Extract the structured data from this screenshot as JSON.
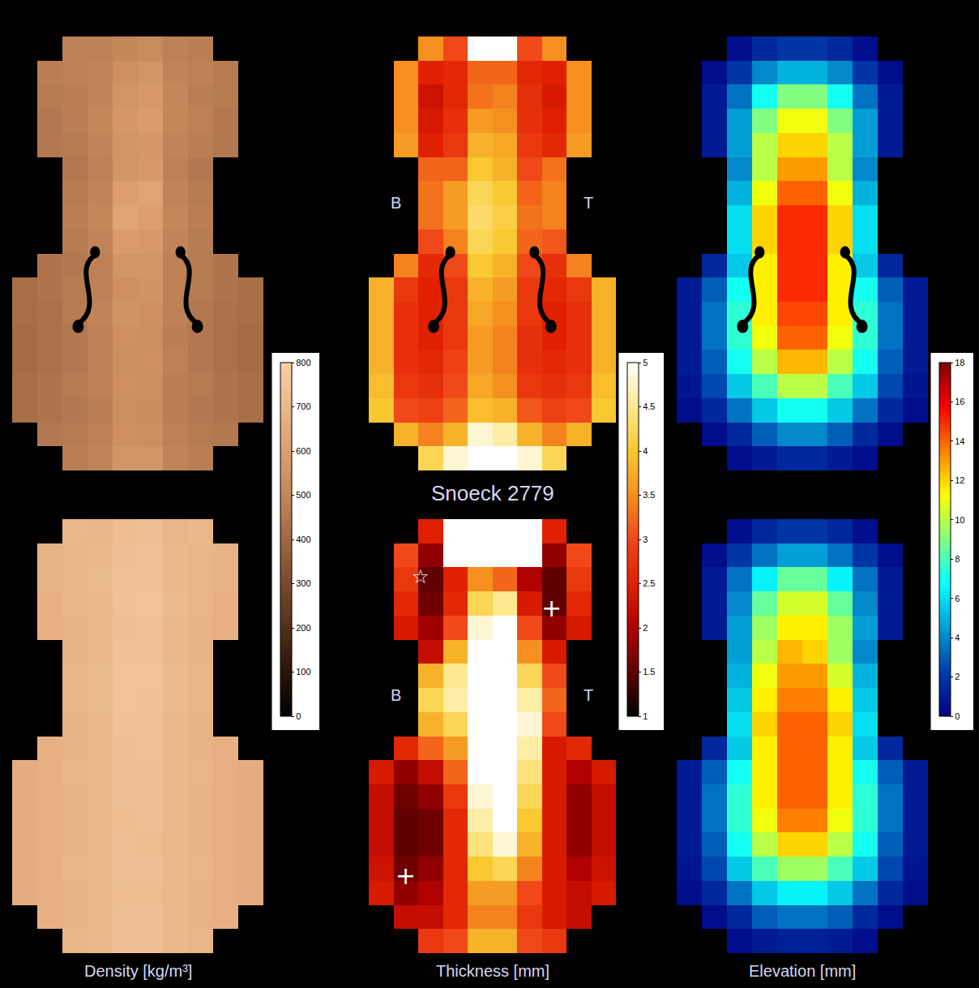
{
  "chart_data": [
    {
      "type": "heatmap",
      "tick_labels": false,
      "color_bar": {
        "range": [
          0,
          800
        ],
        "ticks": [
          0,
          100,
          200,
          300,
          400,
          500,
          600,
          700,
          800
        ]
      },
      "annotations": [],
      "z": [
        [
          null,
          null,
          480,
          480,
          500,
          520,
          480,
          470,
          null,
          null
        ],
        [
          null,
          470,
          480,
          490,
          540,
          560,
          490,
          480,
          460,
          null
        ],
        [
          null,
          460,
          470,
          490,
          560,
          580,
          500,
          470,
          460,
          null
        ],
        [
          null,
          450,
          470,
          500,
          570,
          590,
          500,
          480,
          450,
          null
        ],
        [
          null,
          450,
          460,
          490,
          560,
          570,
          490,
          470,
          450,
          null
        ],
        [
          null,
          null,
          450,
          480,
          560,
          580,
          480,
          450,
          null,
          null
        ],
        [
          null,
          null,
          460,
          490,
          600,
          620,
          490,
          460,
          null,
          null
        ],
        [
          null,
          null,
          470,
          500,
          620,
          600,
          500,
          470,
          null,
          null
        ],
        [
          null,
          null,
          460,
          490,
          590,
          580,
          490,
          460,
          null,
          null
        ],
        [
          null,
          440,
          450,
          480,
          560,
          560,
          480,
          460,
          440,
          null
        ],
        [
          420,
          440,
          460,
          480,
          540,
          550,
          480,
          460,
          440,
          420
        ],
        [
          420,
          430,
          460,
          490,
          550,
          540,
          480,
          450,
          430,
          420
        ],
        [
          410,
          430,
          450,
          480,
          540,
          530,
          470,
          450,
          430,
          410
        ],
        [
          410,
          430,
          450,
          480,
          530,
          540,
          480,
          450,
          430,
          410
        ],
        [
          420,
          440,
          460,
          480,
          540,
          530,
          470,
          460,
          440,
          420
        ],
        [
          420,
          440,
          450,
          470,
          530,
          520,
          470,
          450,
          440,
          420
        ],
        [
          null,
          450,
          460,
          480,
          540,
          530,
          480,
          460,
          450,
          null
        ],
        [
          null,
          null,
          470,
          490,
          560,
          560,
          490,
          470,
          null,
          null
        ]
      ]
    },
    {
      "type": "heatmap",
      "tick_labels": false,
      "color_bar": {
        "range": [
          1,
          5
        ],
        "ticks": [
          1,
          1.5,
          2,
          2.5,
          3,
          3.5,
          4,
          4.5,
          5
        ]
      },
      "xlabel": "Snoeck 2779",
      "annotations": [
        "B",
        "T"
      ],
      "z": [
        [
          null,
          null,
          3.5,
          3,
          5,
          5,
          3,
          3.5,
          null,
          null
        ],
        [
          null,
          3.5,
          2.5,
          2.6,
          3.2,
          3.2,
          2.6,
          2.5,
          3.5,
          null
        ],
        [
          null,
          3.5,
          2.3,
          2.6,
          3.3,
          3.4,
          2.7,
          2.4,
          3.5,
          null
        ],
        [
          null,
          3.5,
          2.4,
          2.7,
          3.6,
          3.5,
          2.7,
          2.5,
          3.5,
          null
        ],
        [
          null,
          3.6,
          2.5,
          2.8,
          3.8,
          3.7,
          2.8,
          2.6,
          3.6,
          null
        ],
        [
          null,
          null,
          3.2,
          3.2,
          4.0,
          3.8,
          3.0,
          3.3,
          null,
          null
        ],
        [
          null,
          null,
          3.3,
          3.6,
          4.2,
          4.0,
          3.2,
          3.4,
          null,
          null
        ],
        [
          null,
          null,
          3.3,
          3.6,
          4.3,
          4.1,
          3.3,
          3.4,
          null,
          null
        ],
        [
          null,
          null,
          3.0,
          3.4,
          4.2,
          4.0,
          3.2,
          3.1,
          null,
          null
        ],
        [
          null,
          3.4,
          2.6,
          3.0,
          4.0,
          3.8,
          3.0,
          2.7,
          3.4,
          null
        ],
        [
          3.8,
          2.8,
          2.5,
          2.8,
          3.8,
          3.6,
          2.8,
          2.6,
          2.8,
          3.8
        ],
        [
          3.8,
          2.7,
          2.5,
          2.8,
          3.7,
          3.5,
          2.8,
          2.5,
          2.7,
          3.8
        ],
        [
          3.8,
          2.7,
          2.5,
          2.8,
          3.6,
          3.4,
          2.7,
          2.5,
          2.7,
          3.8
        ],
        [
          3.8,
          2.7,
          2.6,
          2.9,
          3.6,
          3.4,
          2.7,
          2.6,
          2.7,
          3.8
        ],
        [
          3.9,
          2.8,
          2.7,
          3.0,
          3.7,
          3.5,
          2.8,
          2.7,
          2.8,
          3.9
        ],
        [
          4.0,
          3.0,
          2.9,
          3.2,
          3.9,
          3.8,
          3.1,
          2.9,
          3.0,
          4.0
        ],
        [
          null,
          3.8,
          3.4,
          3.8,
          4.8,
          4.6,
          3.8,
          3.4,
          3.8,
          null
        ],
        [
          null,
          null,
          4.2,
          4.8,
          5,
          5,
          4.8,
          4.2,
          null,
          null
        ]
      ]
    },
    {
      "type": "heatmap",
      "tick_labels": false,
      "color_bar": {
        "range": [
          0,
          18
        ],
        "ticks": [
          0,
          2,
          4,
          6,
          8,
          10,
          12,
          14,
          16,
          18
        ]
      },
      "annotations": [],
      "z": [
        [
          null,
          null,
          0.5,
          1.5,
          2,
          2,
          1.5,
          0.5,
          null,
          null
        ],
        [
          null,
          0.5,
          2,
          4,
          5,
          5,
          4,
          2,
          0.5,
          null
        ],
        [
          null,
          1,
          3.5,
          7,
          9,
          9,
          7,
          3.5,
          1,
          null
        ],
        [
          null,
          1,
          4.5,
          9,
          11,
          11,
          9,
          4.5,
          1,
          null
        ],
        [
          null,
          1,
          4.5,
          10,
          12,
          12,
          10,
          4.5,
          1,
          null
        ],
        [
          null,
          null,
          4,
          10,
          13,
          13,
          10,
          4,
          null,
          null
        ],
        [
          null,
          null,
          5,
          11,
          14,
          14,
          11,
          5,
          null,
          null
        ],
        [
          null,
          null,
          6,
          12,
          15,
          15,
          12,
          6,
          null,
          null
        ],
        [
          null,
          null,
          6,
          12,
          15,
          15,
          12,
          6,
          null,
          null
        ],
        [
          null,
          1.5,
          5.5,
          11.5,
          15,
          15,
          11.5,
          5.5,
          1.5,
          null
        ],
        [
          1,
          3,
          7,
          11.5,
          15,
          15,
          11.5,
          7,
          3,
          1
        ],
        [
          1,
          3.5,
          7.5,
          11.5,
          14.5,
          14.5,
          11.5,
          7.5,
          3.5,
          1
        ],
        [
          1,
          3.5,
          7.5,
          11,
          14,
          14,
          11,
          7.5,
          3.5,
          1
        ],
        [
          1,
          3,
          7,
          10,
          12.5,
          12.5,
          10,
          7,
          3,
          1
        ],
        [
          0.8,
          2.5,
          5.5,
          8,
          10,
          10,
          8,
          5.5,
          2.5,
          0.8
        ],
        [
          0.5,
          1.5,
          3.5,
          5.5,
          7,
          7,
          5.5,
          3.5,
          1.5,
          0.5
        ],
        [
          null,
          0.5,
          1.5,
          3,
          4,
          4,
          3,
          1.5,
          0.5,
          null
        ],
        [
          null,
          null,
          0.5,
          1,
          1.5,
          1.5,
          1,
          0.5,
          null,
          null
        ]
      ]
    },
    {
      "type": "heatmap",
      "tick_labels": false,
      "xlabel": "Density [kg/m³]",
      "annotations": [],
      "z": [
        [
          null,
          null,
          700,
          690,
          720,
          730,
          690,
          700,
          null,
          null
        ],
        [
          null,
          680,
          690,
          700,
          730,
          740,
          700,
          690,
          680,
          null
        ],
        [
          null,
          680,
          690,
          710,
          740,
          740,
          700,
          690,
          680,
          null
        ],
        [
          null,
          670,
          690,
          700,
          740,
          750,
          710,
          690,
          670,
          null
        ],
        [
          null,
          670,
          680,
          700,
          730,
          740,
          700,
          680,
          670,
          null
        ],
        [
          null,
          null,
          680,
          700,
          740,
          740,
          700,
          680,
          null,
          null
        ],
        [
          null,
          null,
          690,
          710,
          750,
          750,
          710,
          690,
          null,
          null
        ],
        [
          null,
          null,
          690,
          710,
          750,
          740,
          710,
          690,
          null,
          null
        ],
        [
          null,
          null,
          680,
          700,
          740,
          740,
          700,
          680,
          null,
          null
        ],
        [
          null,
          670,
          680,
          700,
          730,
          740,
          700,
          680,
          670,
          null
        ],
        [
          660,
          670,
          690,
          700,
          730,
          730,
          700,
          690,
          670,
          660
        ],
        [
          660,
          670,
          680,
          700,
          730,
          730,
          700,
          680,
          670,
          660
        ],
        [
          660,
          670,
          680,
          700,
          720,
          730,
          700,
          680,
          670,
          660
        ],
        [
          660,
          670,
          680,
          700,
          730,
          720,
          700,
          680,
          670,
          660
        ],
        [
          660,
          670,
          690,
          700,
          730,
          730,
          700,
          690,
          670,
          660
        ],
        [
          660,
          670,
          680,
          700,
          720,
          720,
          700,
          680,
          670,
          660
        ],
        [
          null,
          670,
          680,
          700,
          730,
          730,
          700,
          680,
          670,
          null
        ],
        [
          null,
          null,
          690,
          700,
          730,
          730,
          700,
          690,
          null,
          null
        ]
      ]
    },
    {
      "type": "heatmap",
      "tick_labels": false,
      "xlabel": "Thickness [mm]",
      "annotations": [
        "B",
        "T",
        "☆",
        "+",
        "+"
      ],
      "z": [
        [
          null,
          null,
          2.5,
          5,
          5,
          5,
          5,
          2.5,
          null,
          null
        ],
        [
          null,
          3.0,
          1.8,
          5,
          5,
          5,
          5,
          1.8,
          3.0,
          null
        ],
        [
          null,
          2.8,
          1.5,
          2.5,
          3.5,
          3.2,
          2.0,
          1.5,
          2.8,
          null
        ],
        [
          null,
          2.6,
          1.6,
          2.6,
          4.2,
          4.5,
          2.4,
          1.5,
          2.6,
          null
        ],
        [
          null,
          2.4,
          1.9,
          3.0,
          4.8,
          5,
          3.0,
          1.8,
          2.4,
          null
        ],
        [
          null,
          null,
          2.2,
          3.8,
          5,
          5,
          3.5,
          2.4,
          null,
          null
        ],
        [
          null,
          null,
          3.8,
          4.5,
          5,
          5,
          4.2,
          3.0,
          null,
          null
        ],
        [
          null,
          null,
          4.2,
          4.6,
          5,
          5,
          4.6,
          3.2,
          null,
          null
        ],
        [
          null,
          null,
          3.8,
          4.2,
          5,
          5,
          4.8,
          3.0,
          null,
          null
        ],
        [
          null,
          2.6,
          3.2,
          3.6,
          5,
          5,
          4.6,
          2.4,
          2.6,
          null
        ],
        [
          2.4,
          1.8,
          2.2,
          3.2,
          5,
          5,
          4.4,
          2.4,
          2.0,
          2.4
        ],
        [
          2.2,
          1.6,
          1.8,
          2.8,
          4.8,
          5,
          4.2,
          2.4,
          1.8,
          2.2
        ],
        [
          2.2,
          1.5,
          1.6,
          2.6,
          4.6,
          5,
          4.0,
          2.4,
          1.8,
          2.2
        ],
        [
          2.2,
          1.5,
          1.6,
          2.6,
          4.4,
          4.8,
          3.8,
          2.4,
          1.8,
          2.2
        ],
        [
          2.3,
          1.6,
          1.8,
          2.6,
          4.0,
          4.2,
          3.4,
          2.4,
          2.0,
          2.3
        ],
        [
          2.4,
          1.8,
          2.0,
          2.6,
          3.6,
          3.6,
          3.0,
          2.4,
          2.2,
          2.4
        ],
        [
          null,
          2.2,
          2.2,
          2.6,
          3.4,
          3.4,
          2.8,
          2.4,
          2.2,
          null
        ],
        [
          null,
          null,
          2.8,
          3.0,
          3.8,
          3.8,
          3.0,
          2.8,
          null,
          null
        ]
      ]
    },
    {
      "type": "heatmap",
      "tick_labels": false,
      "xlabel": "Elevation [mm]",
      "annotations": [],
      "z": [
        [
          null,
          null,
          0.5,
          1.5,
          2,
          2,
          1.5,
          0.5,
          null,
          null
        ],
        [
          null,
          0.5,
          2,
          3.5,
          4.5,
          4.5,
          3.5,
          2,
          0.5,
          null
        ],
        [
          null,
          1,
          3.5,
          6.5,
          8.5,
          8.5,
          6.5,
          3.5,
          1,
          null
        ],
        [
          null,
          1,
          4,
          8.5,
          10.5,
          10.5,
          8.5,
          4,
          1,
          null
        ],
        [
          null,
          1,
          4.5,
          9.5,
          11.5,
          11.5,
          9.5,
          4.5,
          1,
          null
        ],
        [
          null,
          null,
          4.5,
          10,
          12.5,
          12,
          9.5,
          4,
          null,
          null
        ],
        [
          null,
          null,
          5,
          11,
          13,
          13,
          10.5,
          5,
          null,
          null
        ],
        [
          null,
          null,
          5.5,
          11.5,
          13.5,
          13.5,
          11.5,
          5.5,
          null,
          null
        ],
        [
          null,
          null,
          6,
          12,
          14,
          14,
          12,
          6,
          null,
          null
        ],
        [
          null,
          1.5,
          5.5,
          11.5,
          14,
          14,
          11.5,
          5.5,
          1.5,
          null
        ],
        [
          1,
          3,
          7,
          11.5,
          14,
          14,
          11.5,
          7,
          3,
          1
        ],
        [
          1,
          3.5,
          7.5,
          11.5,
          14,
          14,
          11.5,
          7.5,
          3.5,
          1
        ],
        [
          1,
          3.5,
          7.5,
          11,
          13.5,
          13.5,
          11,
          7.5,
          3.5,
          1
        ],
        [
          1,
          3,
          7,
          10,
          12,
          12,
          10,
          7,
          3,
          1
        ],
        [
          0.8,
          2.5,
          5.5,
          8,
          9.5,
          9.5,
          8,
          5.5,
          2.5,
          0.8
        ],
        [
          0.5,
          1.5,
          3.5,
          5.5,
          6.5,
          6.5,
          5.5,
          3.5,
          1.5,
          0.5
        ],
        [
          null,
          0.5,
          1.5,
          3,
          3.5,
          3.5,
          3,
          1.5,
          0.5,
          null
        ],
        [
          null,
          null,
          0.5,
          1,
          1.2,
          1.2,
          1,
          0.5,
          null,
          null
        ]
      ]
    }
  ]
}
